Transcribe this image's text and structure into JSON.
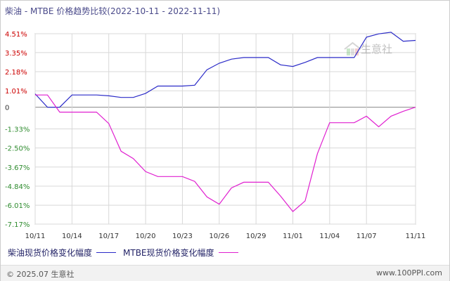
{
  "title": "柴油 - MTBE 价格趋势比较(2022-10-11 - 2022-11-11)",
  "watermark": "生意社",
  "footer": {
    "copyright": "© 2025.07 生意社",
    "website": "www.100PPI.com"
  },
  "colors": {
    "series1": "#2b2bc8",
    "series2": "#e020d0",
    "positive_tick": "#cc0000",
    "negative_tick": "#2e8b2e",
    "grid": "#d8d8d8"
  },
  "chart_data": {
    "type": "line",
    "ylim": [
      -7.17,
      4.51
    ],
    "y_ticks": [
      "4.51%",
      "3.35%",
      "2.18%",
      "1.01%",
      "0",
      "-1.33%",
      "-2.50%",
      "-3.67%",
      "-4.84%",
      "-6.01%",
      "-7.17%"
    ],
    "y_tick_values": [
      4.51,
      3.35,
      2.18,
      1.01,
      0,
      -1.33,
      -2.5,
      -3.67,
      -4.84,
      -6.01,
      -7.17
    ],
    "x_ticks": [
      "10/11",
      "10/14",
      "10/17",
      "10/20",
      "10/23",
      "10/26",
      "10/29",
      "11/01",
      "11/04",
      "11/07",
      "11/11"
    ],
    "x_tick_days": [
      0,
      3,
      6,
      9,
      12,
      15,
      18,
      21,
      24,
      27,
      31
    ],
    "x_range": [
      0,
      31
    ],
    "series": [
      {
        "name": "柴油现货价格变化幅度",
        "points": [
          [
            0,
            0.82
          ],
          [
            1,
            0.0
          ],
          [
            2,
            0.0
          ],
          [
            3,
            0.75
          ],
          [
            4,
            0.75
          ],
          [
            5,
            0.75
          ],
          [
            6,
            0.7
          ],
          [
            7,
            0.6
          ],
          [
            8,
            0.6
          ],
          [
            9,
            0.85
          ],
          [
            10,
            1.3
          ],
          [
            11,
            1.3
          ],
          [
            12,
            1.3
          ],
          [
            13,
            1.35
          ],
          [
            14,
            2.3
          ],
          [
            15,
            2.7
          ],
          [
            16,
            2.95
          ],
          [
            17,
            3.05
          ],
          [
            18,
            3.05
          ],
          [
            19,
            3.05
          ],
          [
            20,
            2.6
          ],
          [
            21,
            2.5
          ],
          [
            22,
            2.75
          ],
          [
            23,
            3.05
          ],
          [
            24,
            3.05
          ],
          [
            25,
            3.05
          ],
          [
            26,
            3.05
          ],
          [
            27,
            4.3
          ],
          [
            28,
            4.5
          ],
          [
            29,
            4.6
          ],
          [
            30,
            4.05
          ],
          [
            31,
            4.1
          ]
        ]
      },
      {
        "name": "MTBE现货价格变化幅度",
        "points": [
          [
            0,
            0.75
          ],
          [
            1,
            0.75
          ],
          [
            2,
            -0.3
          ],
          [
            3,
            -0.3
          ],
          [
            4,
            -0.3
          ],
          [
            5,
            -0.3
          ],
          [
            6,
            -1.0
          ],
          [
            7,
            -2.7
          ],
          [
            8,
            -3.15
          ],
          [
            9,
            -3.95
          ],
          [
            10,
            -4.25
          ],
          [
            11,
            -4.25
          ],
          [
            12,
            -4.25
          ],
          [
            13,
            -4.55
          ],
          [
            14,
            -5.5
          ],
          [
            15,
            -5.95
          ],
          [
            16,
            -4.95
          ],
          [
            17,
            -4.6
          ],
          [
            18,
            -4.6
          ],
          [
            19,
            -4.6
          ],
          [
            20,
            -5.45
          ],
          [
            21,
            -6.4
          ],
          [
            22,
            -5.75
          ],
          [
            23,
            -2.85
          ],
          [
            24,
            -0.95
          ],
          [
            25,
            -0.95
          ],
          [
            26,
            -0.95
          ],
          [
            27,
            -0.55
          ],
          [
            28,
            -1.2
          ],
          [
            29,
            -0.55
          ],
          [
            30,
            -0.25
          ],
          [
            31,
            0.0
          ]
        ]
      }
    ],
    "legend": "bottom",
    "grid": true
  }
}
